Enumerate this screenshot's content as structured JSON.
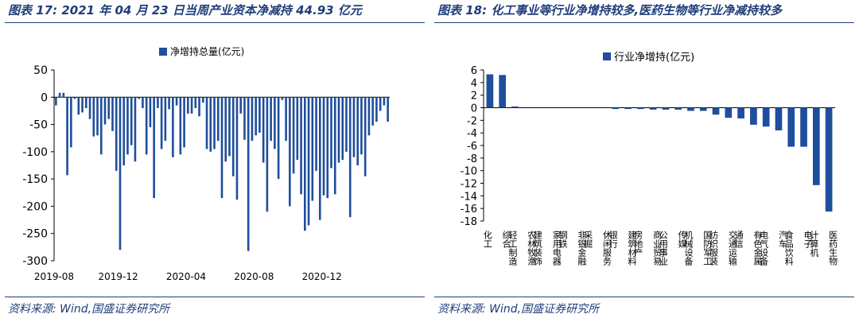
{
  "left": {
    "figure_title": "图表 17:  2021 年 04 月 23 日当周产业资本净减持 44.93 亿元",
    "source": "资料来源:  Wind,国盛证券研究所",
    "legend_color": "#1f4e9c"
  },
  "right": {
    "figure_title": "图表 18:  化工事业等行业净增持较多,医药生物等行业净减持较多",
    "source": "资料来源:  Wind,国盛证券研究所",
    "legend_color": "#1f4e9c"
  },
  "chart_data": [
    {
      "type": "bar",
      "legend": "净增持总量(亿元)",
      "ylim": [
        -300,
        50
      ],
      "yticks": [
        50,
        0,
        -50,
        -100,
        -150,
        -200,
        -250,
        -300
      ],
      "x_tick_labels": [
        "2019-08",
        "2019-12",
        "2020-04",
        "2020-08",
        "2020-12"
      ],
      "x_tick_index": [
        0,
        17,
        35,
        53,
        71
      ],
      "grid": false,
      "values": [
        -15,
        8,
        8,
        -143,
        -92,
        -3,
        -32,
        -28,
        -20,
        -40,
        -72,
        -70,
        -105,
        -50,
        -40,
        -62,
        -135,
        -280,
        -125,
        -105,
        -88,
        -118,
        -3,
        -20,
        -105,
        -55,
        -185,
        -20,
        -95,
        -80,
        -22,
        -110,
        -15,
        -105,
        -92,
        -30,
        -30,
        -20,
        -35,
        -10,
        -95,
        -100,
        -95,
        -80,
        -185,
        -118,
        -108,
        -145,
        -188,
        -30,
        -78,
        -282,
        -80,
        -70,
        -65,
        -120,
        -210,
        -80,
        -95,
        -150,
        -5,
        -80,
        -200,
        -140,
        -115,
        -178,
        -245,
        -235,
        -190,
        -135,
        -225,
        -180,
        -185,
        -130,
        -178,
        -120,
        -115,
        -100,
        -220,
        -110,
        -125,
        -105,
        -145,
        -70,
        -52,
        -45,
        -25,
        -15,
        -45
      ]
    },
    {
      "type": "bar",
      "legend": "行业净增持(亿元)",
      "ylim": [
        -18,
        6
      ],
      "yticks": [
        6,
        4,
        2,
        0,
        -2,
        -4,
        -6,
        -8,
        -10,
        -12,
        -14,
        -16,
        -18
      ],
      "grid": false,
      "categories": [
        "化工",
        "综合",
        "轻工制造",
        "农林牧渔",
        "建筑装饰",
        "家用电器",
        "钢铁",
        "非银金融",
        "采掘",
        "休闲服务",
        "银行",
        "建筑材料",
        "房地产",
        "商业贸易",
        "公用事业",
        "传媒",
        "机械设备",
        "国防军工",
        "纺织服装",
        "交通运输",
        "通信",
        "有色金属",
        "电气设备",
        "汽车",
        "食品饮料",
        "电子",
        "计算机",
        "医药生物"
      ],
      "values": [
        5.3,
        5.2,
        0.2,
        0.0,
        0.0,
        0.0,
        0.0,
        0.0,
        0.0,
        0.0,
        -0.2,
        -0.2,
        -0.2,
        -0.3,
        -0.3,
        -0.3,
        -0.5,
        -0.5,
        -1.1,
        -1.6,
        -1.7,
        -2.7,
        -3.0,
        -3.6,
        -6.2,
        -6.2,
        -12.3,
        -16.5
      ]
    }
  ]
}
